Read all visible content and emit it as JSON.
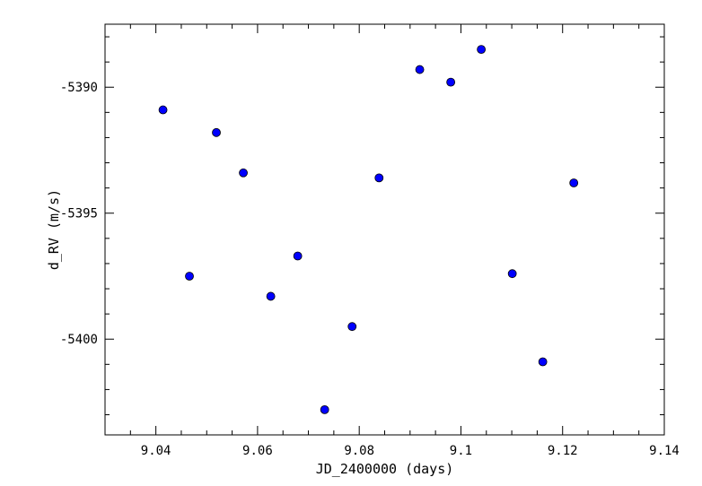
{
  "chart_data": {
    "type": "scatter",
    "xlabel": "JD_2400000 (days)",
    "ylabel": "d_RV (m/s)",
    "xlim": [
      9.03,
      9.14
    ],
    "ylim": [
      -5403.8,
      -5387.5
    ],
    "x_ticks": [
      9.04,
      9.06,
      9.08,
      9.1,
      9.12,
      9.14
    ],
    "x_tick_labels": [
      "9.04",
      "9.06",
      "9.08",
      "9.1",
      "9.12",
      "9.14"
    ],
    "y_ticks": [
      -5390,
      -5395,
      -5400
    ],
    "y_tick_labels": [
      "-5390",
      "-5395",
      "-5400"
    ],
    "grid": false,
    "marker_color": "#0000ff",
    "marker_edge_color": "#000000",
    "points": [
      {
        "x": 9.0414,
        "y": -5390.9
      },
      {
        "x": 9.0466,
        "y": -5397.5
      },
      {
        "x": 9.0519,
        "y": -5391.8
      },
      {
        "x": 9.0572,
        "y": -5393.4
      },
      {
        "x": 9.0626,
        "y": -5398.3
      },
      {
        "x": 9.0679,
        "y": -5396.7
      },
      {
        "x": 9.0732,
        "y": -5402.8
      },
      {
        "x": 9.0786,
        "y": -5399.5
      },
      {
        "x": 9.0839,
        "y": -5393.6
      },
      {
        "x": 9.0919,
        "y": -5389.3
      },
      {
        "x": 9.098,
        "y": -5389.8
      },
      {
        "x": 9.104,
        "y": -5388.5
      },
      {
        "x": 9.1101,
        "y": -5397.4
      },
      {
        "x": 9.1161,
        "y": -5400.9
      },
      {
        "x": 9.1222,
        "y": -5393.8
      }
    ]
  }
}
